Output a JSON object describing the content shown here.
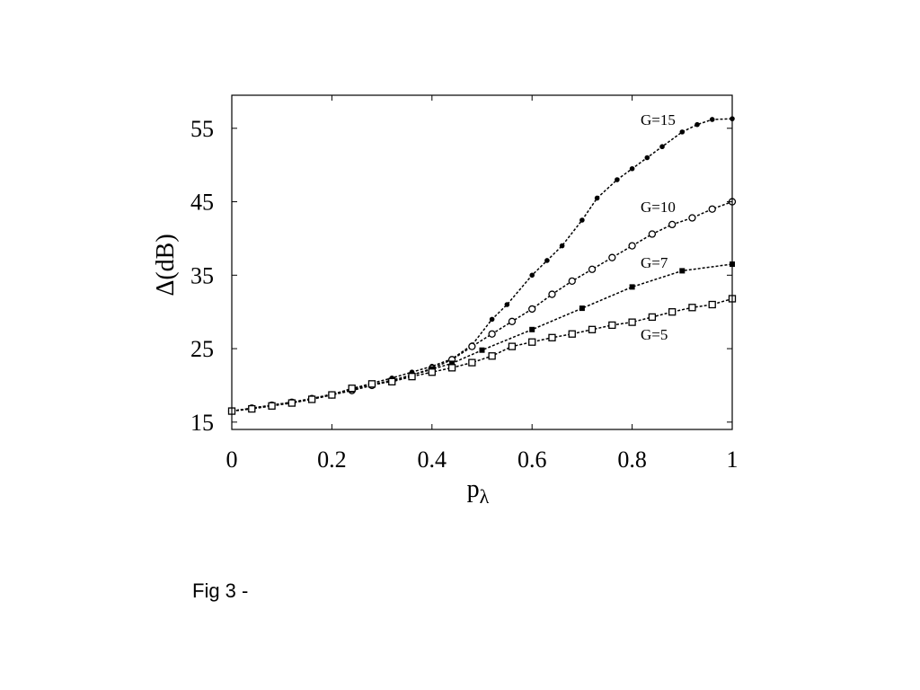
{
  "caption": "Fig 3 -",
  "chart_data": {
    "type": "line",
    "xlabel": "p",
    "xlabel_sub": "λ",
    "ylabel": "Δ(dB)",
    "xlim": [
      0,
      1
    ],
    "ylim": [
      14,
      59.5
    ],
    "xticks": [
      0,
      0.2,
      0.4,
      0.6,
      0.8,
      1
    ],
    "xtick_labels": [
      "0",
      "0.2",
      "0.4",
      "0.6",
      "0.8",
      "1"
    ],
    "yticks": [
      15,
      25,
      35,
      45,
      55
    ],
    "ytick_labels": [
      "15",
      "25",
      "35",
      "45",
      "55"
    ],
    "grid": false,
    "series": [
      {
        "name": "G=15",
        "marker": "filled-circle",
        "x": [
          0,
          0.04,
          0.08,
          0.12,
          0.16,
          0.2,
          0.24,
          0.28,
          0.32,
          0.36,
          0.4,
          0.44,
          0.48,
          0.52,
          0.55,
          0.6,
          0.63,
          0.66,
          0.7,
          0.73,
          0.77,
          0.8,
          0.83,
          0.86,
          0.9,
          0.93,
          0.96,
          1.0
        ],
        "y": [
          16.5,
          16.9,
          17.3,
          17.7,
          18.2,
          18.8,
          19.5,
          20.3,
          21.0,
          21.8,
          22.6,
          23.6,
          25.5,
          29.0,
          31.0,
          35.0,
          37.0,
          39.0,
          42.5,
          45.5,
          48.0,
          49.5,
          51.0,
          52.5,
          54.5,
          55.5,
          56.2,
          56.3
        ]
      },
      {
        "name": "G=10",
        "marker": "open-circle",
        "x": [
          0,
          0.04,
          0.08,
          0.12,
          0.16,
          0.2,
          0.24,
          0.28,
          0.32,
          0.36,
          0.4,
          0.44,
          0.48,
          0.52,
          0.56,
          0.6,
          0.64,
          0.68,
          0.72,
          0.76,
          0.8,
          0.84,
          0.88,
          0.92,
          0.96,
          1.0
        ],
        "y": [
          16.5,
          16.9,
          17.3,
          17.7,
          18.2,
          18.7,
          19.3,
          20.0,
          20.6,
          21.4,
          22.3,
          23.5,
          25.3,
          27.0,
          28.7,
          30.4,
          32.4,
          34.2,
          35.8,
          37.4,
          39.0,
          40.6,
          41.9,
          42.8,
          44.0,
          45.0
        ]
      },
      {
        "name": "G=7",
        "marker": "filled-square",
        "x": [
          0,
          0.04,
          0.08,
          0.12,
          0.16,
          0.2,
          0.24,
          0.28,
          0.32,
          0.36,
          0.4,
          0.44,
          0.5,
          0.6,
          0.7,
          0.8,
          0.9,
          1.0
        ],
        "y": [
          16.5,
          16.9,
          17.3,
          17.7,
          18.2,
          18.8,
          19.4,
          20.1,
          20.7,
          21.4,
          22.2,
          23.0,
          24.8,
          27.6,
          30.5,
          33.4,
          35.6,
          36.5
        ]
      },
      {
        "name": "G=5",
        "marker": "open-square",
        "x": [
          0,
          0.04,
          0.08,
          0.12,
          0.16,
          0.2,
          0.24,
          0.28,
          0.32,
          0.36,
          0.4,
          0.44,
          0.48,
          0.52,
          0.56,
          0.6,
          0.64,
          0.68,
          0.72,
          0.76,
          0.8,
          0.84,
          0.88,
          0.92,
          0.96,
          1.0
        ],
        "y": [
          16.5,
          16.8,
          17.2,
          17.6,
          18.1,
          18.7,
          19.6,
          20.2,
          20.5,
          21.2,
          21.8,
          22.4,
          23.1,
          24.0,
          25.3,
          25.9,
          26.5,
          27.0,
          27.6,
          28.2,
          28.6,
          29.3,
          30.0,
          30.6,
          31.0,
          31.8
        ]
      }
    ]
  }
}
